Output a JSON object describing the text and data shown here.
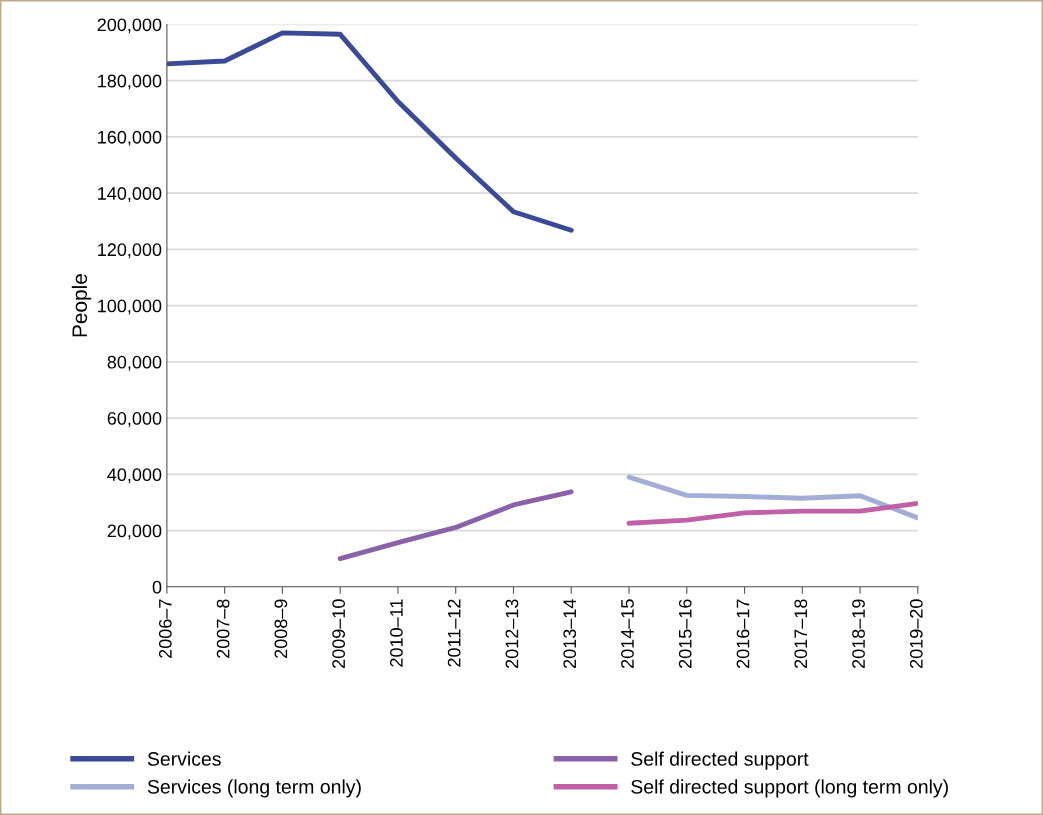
{
  "chart_data": {
    "type": "line",
    "ylabel": "People",
    "categories": [
      "2006–7",
      "2007–8",
      "2008–9",
      "2009–10",
      "2010–11",
      "2011–12",
      "2012–13",
      "2013–14",
      "2014–15",
      "2015–16",
      "2016–17",
      "2017–18",
      "2018–19",
      "2019–20"
    ],
    "series": [
      {
        "name": "Services",
        "color": "#3a4a97",
        "values": [
          186000,
          187000,
          197000,
          196500,
          172600,
          152500,
          133400,
          126800,
          null,
          null,
          null,
          null,
          null,
          null
        ]
      },
      {
        "name": "Services (long term only)",
        "color": "#a3add6",
        "values": [
          null,
          null,
          null,
          null,
          null,
          null,
          null,
          null,
          39000,
          32500,
          32100,
          31500,
          32400,
          24500
        ]
      },
      {
        "name": "Self directed support",
        "color": "#8a62aa",
        "values": [
          null,
          null,
          null,
          10000,
          15700,
          21100,
          29100,
          33800,
          null,
          null,
          null,
          null,
          null,
          null
        ]
      },
      {
        "name": "Self directed support (long term only)",
        "color": "#c060a8",
        "values": [
          null,
          null,
          null,
          null,
          null,
          null,
          null,
          null,
          22600,
          23700,
          26300,
          26900,
          26900,
          29700
        ]
      }
    ],
    "ylim": [
      0,
      200000
    ],
    "yticks": [
      {
        "value": 0,
        "label": "0"
      },
      {
        "value": 20000,
        "label": "20,000"
      },
      {
        "value": 40000,
        "label": "40,000"
      },
      {
        "value": 60000,
        "label": "60,000"
      },
      {
        "value": 80000,
        "label": "80,000"
      },
      {
        "value": 100000,
        "label": "100,000"
      },
      {
        "value": 120000,
        "label": "120,000"
      },
      {
        "value": 140000,
        "label": "140,000"
      },
      {
        "value": 160000,
        "label": "160,000"
      },
      {
        "value": 180000,
        "label": "180,000"
      },
      {
        "value": 200000,
        "label": "200,000"
      }
    ],
    "grid": "y",
    "legend": "bottom",
    "marker": "none",
    "line_style": "solid"
  }
}
